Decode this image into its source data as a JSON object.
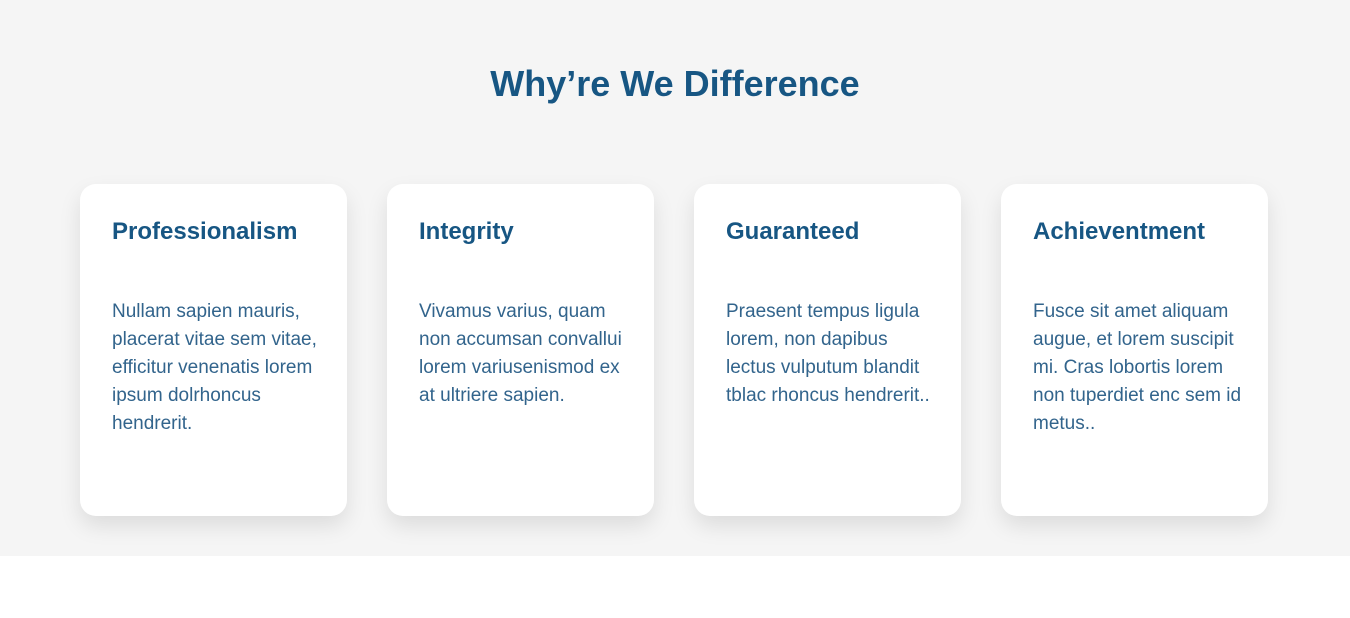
{
  "section": {
    "title": "Why’re We Difference"
  },
  "cards": [
    {
      "title": "Professionalism",
      "text": "Nullam sapien mauris, placerat vitae sem vitae, efficitur venenatis lorem ipsum dolrhoncus hendrerit."
    },
    {
      "title": "Integrity",
      "text": "Vivamus varius, quam non accumsan convallui lorem variusenismod ex at ultriere sapien."
    },
    {
      "title": "Guaranteed",
      "text": "Praesent tempus ligula lorem, non dapibus lectus vulputum blandit tblac rhoncus hendrerit.."
    },
    {
      "title": "Achieventment",
      "text": "Fusce sit amet aliquam augue, et lorem suscipit mi. Cras lobortis lorem non tuperdiet enc sem id metus.."
    }
  ],
  "colors": {
    "heading": "#175683",
    "body_text": "#32648c",
    "section_background": "#f5f5f5",
    "card_background": "#ffffff"
  }
}
